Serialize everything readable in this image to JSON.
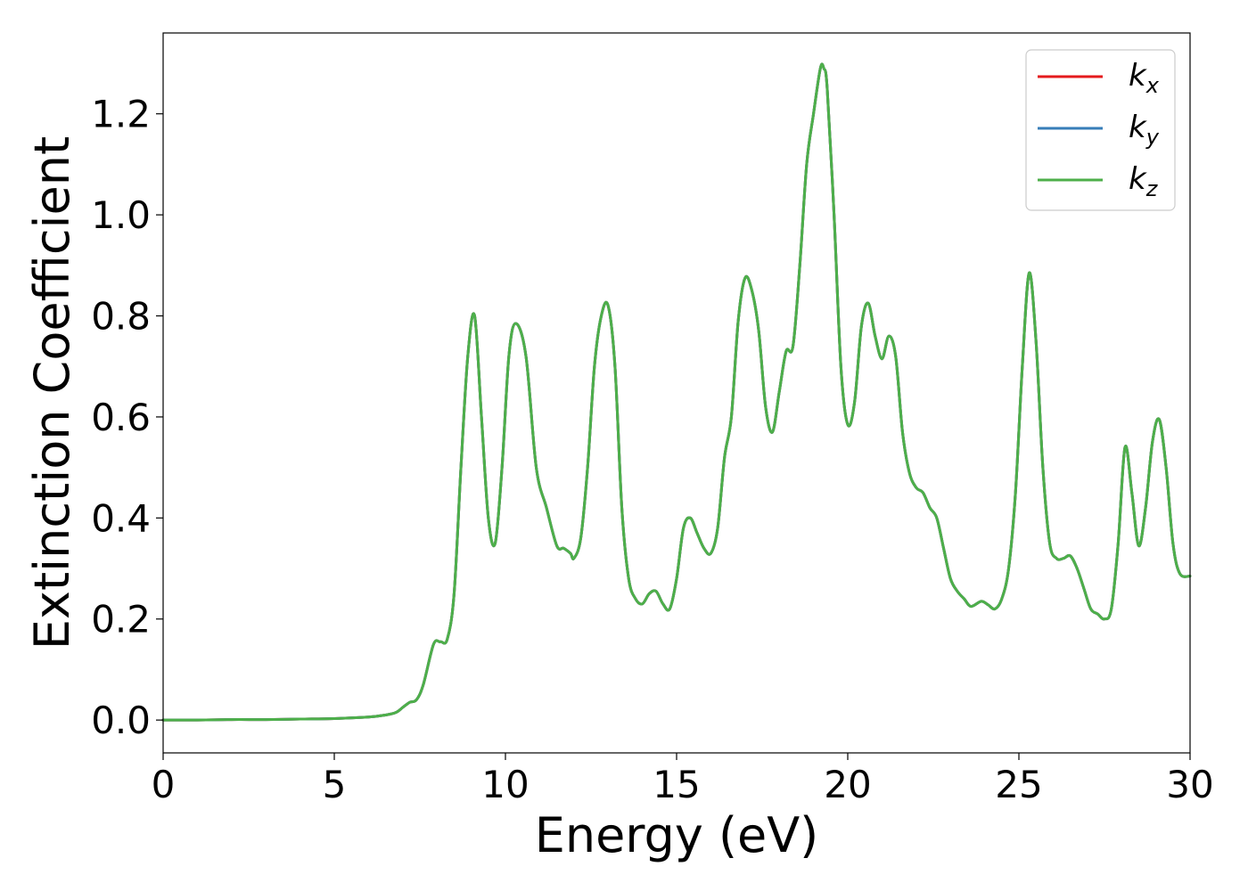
{
  "chart_data": {
    "type": "line",
    "title": "",
    "xlabel": "Energy (eV)",
    "ylabel": "Extinction Coefficient",
    "xlim": [
      0,
      30
    ],
    "ylim": [
      -0.065,
      1.36
    ],
    "xticks": [
      0,
      5,
      10,
      15,
      20,
      25,
      30
    ],
    "xtick_labels": [
      "0",
      "5",
      "10",
      "15",
      "20",
      "25",
      "30"
    ],
    "yticks": [
      0.0,
      0.2,
      0.4,
      0.6,
      0.8,
      1.0,
      1.2
    ],
    "ytick_labels": [
      "0.0",
      "0.2",
      "0.4",
      "0.6",
      "0.8",
      "1.0",
      "1.2"
    ],
    "grid": false,
    "legend_position": "top-right",
    "series": [
      {
        "name": "k",
        "subscript": "x",
        "color": "#e41a1c"
      },
      {
        "name": "k",
        "subscript": "y",
        "color": "#377eb8"
      },
      {
        "name": "k",
        "subscript": "z",
        "color": "#4daf4a"
      }
    ],
    "x": [
      0,
      1,
      2,
      3,
      4,
      5,
      6,
      6.5,
      6.8,
      7.0,
      7.2,
      7.4,
      7.6,
      7.9,
      8.1,
      8.3,
      8.5,
      8.7,
      8.9,
      9.1,
      9.3,
      9.5,
      9.7,
      9.9,
      10.1,
      10.3,
      10.6,
      10.9,
      11.2,
      11.5,
      11.7,
      11.9,
      12.0,
      12.2,
      12.4,
      12.6,
      12.8,
      13.0,
      13.2,
      13.4,
      13.6,
      13.8,
      14.0,
      14.2,
      14.4,
      14.6,
      14.8,
      15.0,
      15.2,
      15.4,
      15.6,
      15.8,
      16.0,
      16.2,
      16.4,
      16.6,
      16.8,
      17.0,
      17.2,
      17.4,
      17.6,
      17.8,
      18.0,
      18.2,
      18.4,
      18.6,
      18.8,
      19.0,
      19.2,
      19.3,
      19.4,
      19.6,
      19.8,
      20.0,
      20.2,
      20.4,
      20.6,
      20.8,
      21.0,
      21.2,
      21.4,
      21.6,
      21.8,
      22.0,
      22.2,
      22.4,
      22.6,
      22.8,
      23.0,
      23.2,
      23.4,
      23.6,
      23.9,
      24.1,
      24.3,
      24.5,
      24.7,
      24.9,
      25.1,
      25.3,
      25.5,
      25.7,
      25.9,
      26.1,
      26.3,
      26.5,
      26.7,
      26.9,
      27.1,
      27.3,
      27.5,
      27.7,
      27.9,
      28.1,
      28.3,
      28.5,
      28.7,
      28.9,
      29.1,
      29.3,
      29.5,
      29.7,
      30.0
    ],
    "y": [
      0.0,
      0.0,
      0.001,
      0.001,
      0.002,
      0.003,
      0.006,
      0.01,
      0.015,
      0.025,
      0.035,
      0.04,
      0.07,
      0.15,
      0.155,
      0.16,
      0.25,
      0.5,
      0.72,
      0.8,
      0.6,
      0.4,
      0.35,
      0.5,
      0.72,
      0.785,
      0.72,
      0.5,
      0.42,
      0.345,
      0.34,
      0.33,
      0.32,
      0.36,
      0.5,
      0.7,
      0.8,
      0.82,
      0.7,
      0.42,
      0.28,
      0.24,
      0.23,
      0.25,
      0.255,
      0.23,
      0.22,
      0.28,
      0.38,
      0.4,
      0.37,
      0.34,
      0.33,
      0.38,
      0.52,
      0.6,
      0.79,
      0.875,
      0.85,
      0.77,
      0.62,
      0.57,
      0.65,
      0.73,
      0.74,
      0.9,
      1.1,
      1.2,
      1.29,
      1.29,
      1.25,
      1.0,
      0.7,
      0.585,
      0.63,
      0.78,
      0.825,
      0.76,
      0.715,
      0.76,
      0.72,
      0.57,
      0.49,
      0.46,
      0.45,
      0.42,
      0.4,
      0.34,
      0.28,
      0.255,
      0.24,
      0.225,
      0.235,
      0.228,
      0.22,
      0.24,
      0.3,
      0.45,
      0.7,
      0.885,
      0.75,
      0.5,
      0.35,
      0.32,
      0.32,
      0.325,
      0.3,
      0.26,
      0.22,
      0.21,
      0.2,
      0.22,
      0.35,
      0.54,
      0.45,
      0.345,
      0.42,
      0.55,
      0.595,
      0.5,
      0.35,
      0.29,
      0.285
    ]
  }
}
